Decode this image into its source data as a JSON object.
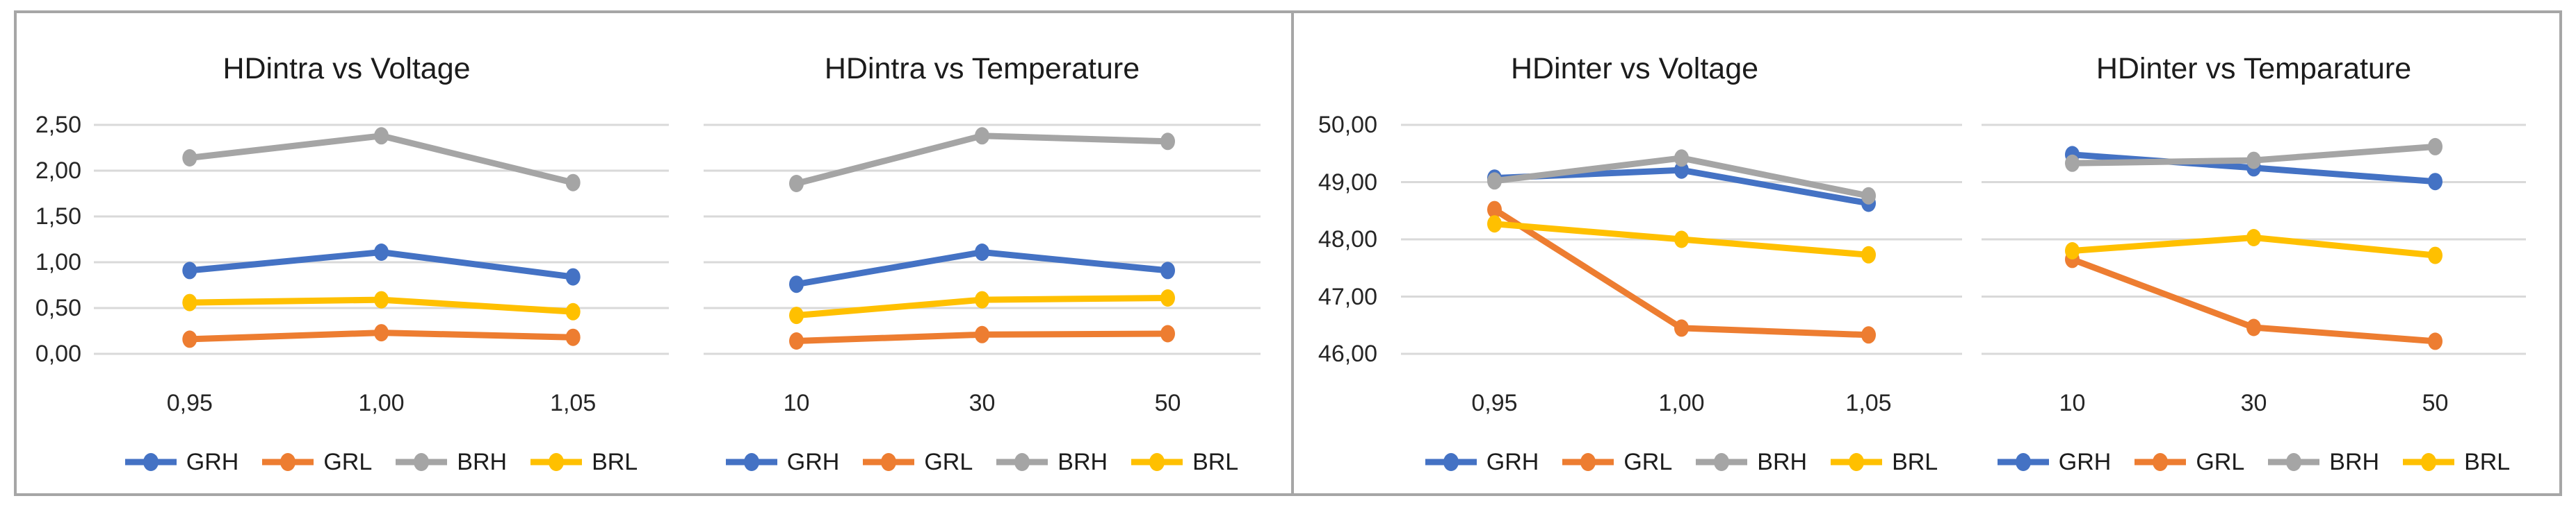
{
  "panel": {
    "background": "#ffffff",
    "border_color": "#a6a6a6",
    "gridline_color": "#d9d9d9",
    "text_color": "#262626",
    "series_colors": {
      "GRH": "#4472C4",
      "GRL": "#ED7D31",
      "BRH": "#A5A5A5",
      "BRL": "#FFC000"
    }
  },
  "chart_data": [
    {
      "type": "line",
      "title": "HDintra vs Voltage",
      "xlabel": "",
      "ylabel": "",
      "categories": [
        "0,95",
        "1,00",
        "1,05"
      ],
      "y_tick_labels": [
        "2,50",
        "2,00",
        "1,50",
        "1,00",
        "0,50",
        "0,00"
      ],
      "y_gridline_count": 6,
      "ylim": [
        0,
        2.5
      ],
      "grid": "horizontal",
      "legend_position": "bottom",
      "series": [
        {
          "name": "GRH",
          "color": "#4472C4",
          "values": [
            0.91,
            1.11,
            0.84
          ]
        },
        {
          "name": "GRL",
          "color": "#ED7D31",
          "values": [
            0.16,
            0.23,
            0.18
          ]
        },
        {
          "name": "BRH",
          "color": "#A5A5A5",
          "values": [
            2.14,
            2.38,
            1.87
          ]
        },
        {
          "name": "BRL",
          "color": "#FFC000",
          "values": [
            0.56,
            0.59,
            0.46
          ]
        }
      ]
    },
    {
      "type": "line",
      "title": "HDintra vs Temperature",
      "xlabel": "",
      "ylabel": "",
      "categories": [
        "10",
        "30",
        "50"
      ],
      "y_tick_labels": [],
      "y_gridline_count": 6,
      "ylim": [
        0,
        2.5
      ],
      "grid": "horizontal",
      "legend_position": "bottom",
      "series": [
        {
          "name": "GRH",
          "color": "#4472C4",
          "values": [
            0.76,
            1.11,
            0.91
          ]
        },
        {
          "name": "GRL",
          "color": "#ED7D31",
          "values": [
            0.14,
            0.21,
            0.22
          ]
        },
        {
          "name": "BRH",
          "color": "#A5A5A5",
          "values": [
            1.86,
            2.38,
            2.32
          ]
        },
        {
          "name": "BRL",
          "color": "#FFC000",
          "values": [
            0.42,
            0.59,
            0.61
          ]
        }
      ]
    },
    {
      "type": "line",
      "title": "HDinter vs Voltage",
      "xlabel": "",
      "ylabel": "",
      "categories": [
        "0,95",
        "1,00",
        "1,05"
      ],
      "y_tick_labels": [
        "50,00",
        "49,00",
        "48,00",
        "47,00",
        "46,00"
      ],
      "y_gridline_count": 5,
      "ylim": [
        46,
        50
      ],
      "grid": "horizontal",
      "legend_position": "bottom",
      "series": [
        {
          "name": "GRH",
          "color": "#4472C4",
          "values": [
            49.07,
            49.21,
            48.63
          ]
        },
        {
          "name": "GRL",
          "color": "#ED7D31",
          "values": [
            48.52,
            46.45,
            46.33
          ]
        },
        {
          "name": "BRH",
          "color": "#A5A5A5",
          "values": [
            49.02,
            49.42,
            48.76
          ]
        },
        {
          "name": "BRL",
          "color": "#FFC000",
          "values": [
            48.27,
            48.0,
            47.73
          ]
        }
      ]
    },
    {
      "type": "line",
      "title": "HDinter vs Temparature",
      "xlabel": "",
      "ylabel": "",
      "categories": [
        "10",
        "30",
        "50"
      ],
      "y_tick_labels": [],
      "y_gridline_count": 5,
      "ylim": [
        46,
        50
      ],
      "grid": "horizontal",
      "legend_position": "bottom",
      "series": [
        {
          "name": "GRH",
          "color": "#4472C4",
          "values": [
            49.48,
            49.25,
            49.01
          ]
        },
        {
          "name": "GRL",
          "color": "#ED7D31",
          "values": [
            47.65,
            46.46,
            46.22
          ]
        },
        {
          "name": "BRH",
          "color": "#A5A5A5",
          "values": [
            49.33,
            49.38,
            49.62
          ]
        },
        {
          "name": "BRL",
          "color": "#FFC000",
          "values": [
            47.8,
            48.03,
            47.72
          ]
        }
      ]
    }
  ]
}
